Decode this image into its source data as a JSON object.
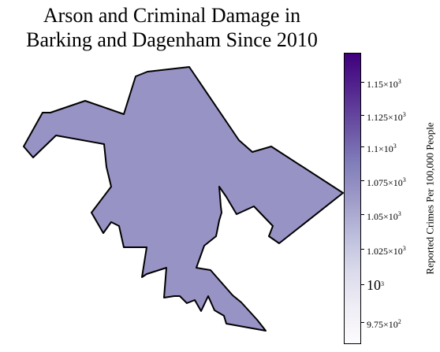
{
  "title_line1": "Arson and Criminal Damage in",
  "title_line2": "Barking and Dagenham Since 2010",
  "borough_fill": "#9893c5",
  "borough_stroke": "#000000",
  "colorbar": {
    "label": "Reported Crimes Per 100,000 People",
    "colors": [
      "#fcfbfd",
      "#efedf5",
      "#dadaeb",
      "#bcbddc",
      "#9e9ac8",
      "#807dba",
      "#6a51a3",
      "#54278f",
      "#3f007d"
    ],
    "ticks": [
      {
        "label": "1.15",
        "exp": "3",
        "big": false
      },
      {
        "label": "1.125",
        "exp": "3",
        "big": false
      },
      {
        "label": "1.1",
        "exp": "3",
        "big": false
      },
      {
        "label": "1.075",
        "exp": "3",
        "big": false
      },
      {
        "label": "1.05",
        "exp": "3",
        "big": false
      },
      {
        "label": "1.025",
        "exp": "3",
        "big": false
      },
      {
        "label": "10",
        "exp": "3",
        "big": true
      },
      {
        "label": "9.75",
        "exp": "2",
        "big": false
      }
    ]
  }
}
